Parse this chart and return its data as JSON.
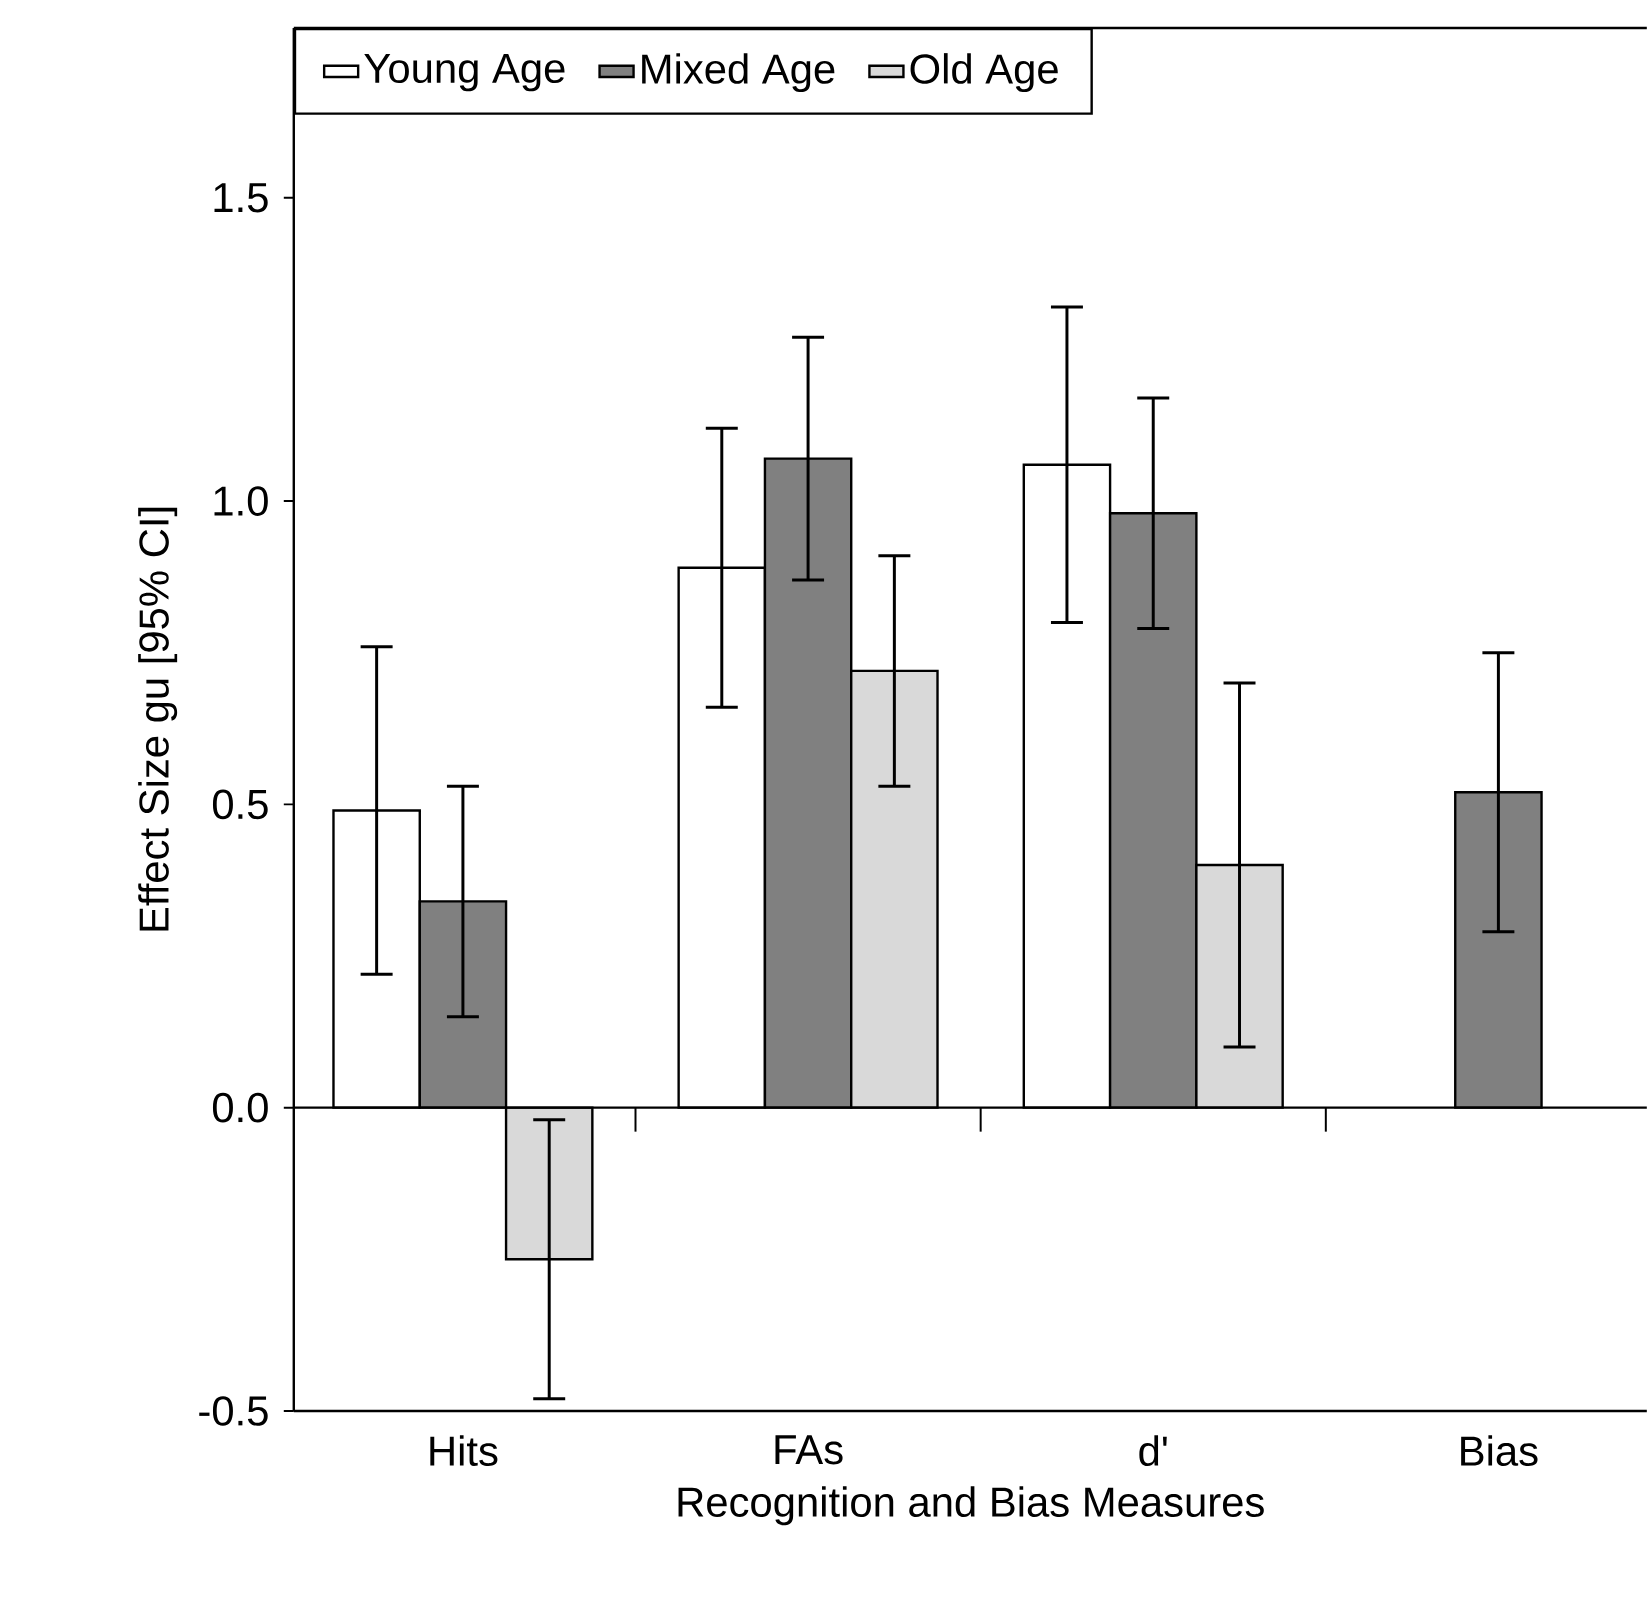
{
  "chart_data": {
    "type": "bar",
    "xlabel": "Recognition and Bias Measures",
    "ylabel": "Effect Size gu  [95% CI]",
    "categories": [
      "Hits",
      "FAs",
      "d'",
      "Bias"
    ],
    "series": [
      {
        "name": "Young Age",
        "color": "#ffffff",
        "values": [
          0.49,
          0.89,
          1.06,
          null
        ],
        "errors": [
          [
            0.22,
            0.76
          ],
          [
            0.66,
            1.12
          ],
          [
            0.8,
            1.32
          ],
          null
        ]
      },
      {
        "name": "Mixed Age",
        "color": "#808080",
        "values": [
          0.34,
          1.07,
          0.98,
          0.52
        ],
        "errors": [
          [
            0.15,
            0.53
          ],
          [
            0.87,
            1.27
          ],
          [
            0.79,
            1.17
          ],
          [
            0.29,
            0.75
          ]
        ]
      },
      {
        "name": "Old Age",
        "color": "#d9d9d9",
        "values": [
          -0.25,
          0.72,
          0.4,
          null
        ],
        "errors": [
          [
            -0.48,
            -0.02
          ],
          [
            0.53,
            0.91
          ],
          [
            0.1,
            0.7
          ],
          null
        ]
      }
    ],
    "ylim": [
      -0.5,
      1.78
    ],
    "yticks": [
      {
        "value": -0.5,
        "label": "-0.5"
      },
      {
        "value": 0,
        "label": "0.0"
      },
      {
        "value": 0.5,
        "label": "0.5"
      },
      {
        "value": 1,
        "label": "1.0"
      },
      {
        "value": 1.5,
        "label": "1.5"
      }
    ],
    "ref_lines": [
      {
        "axis": "y",
        "value": 0
      }
    ],
    "legend": "top"
  }
}
